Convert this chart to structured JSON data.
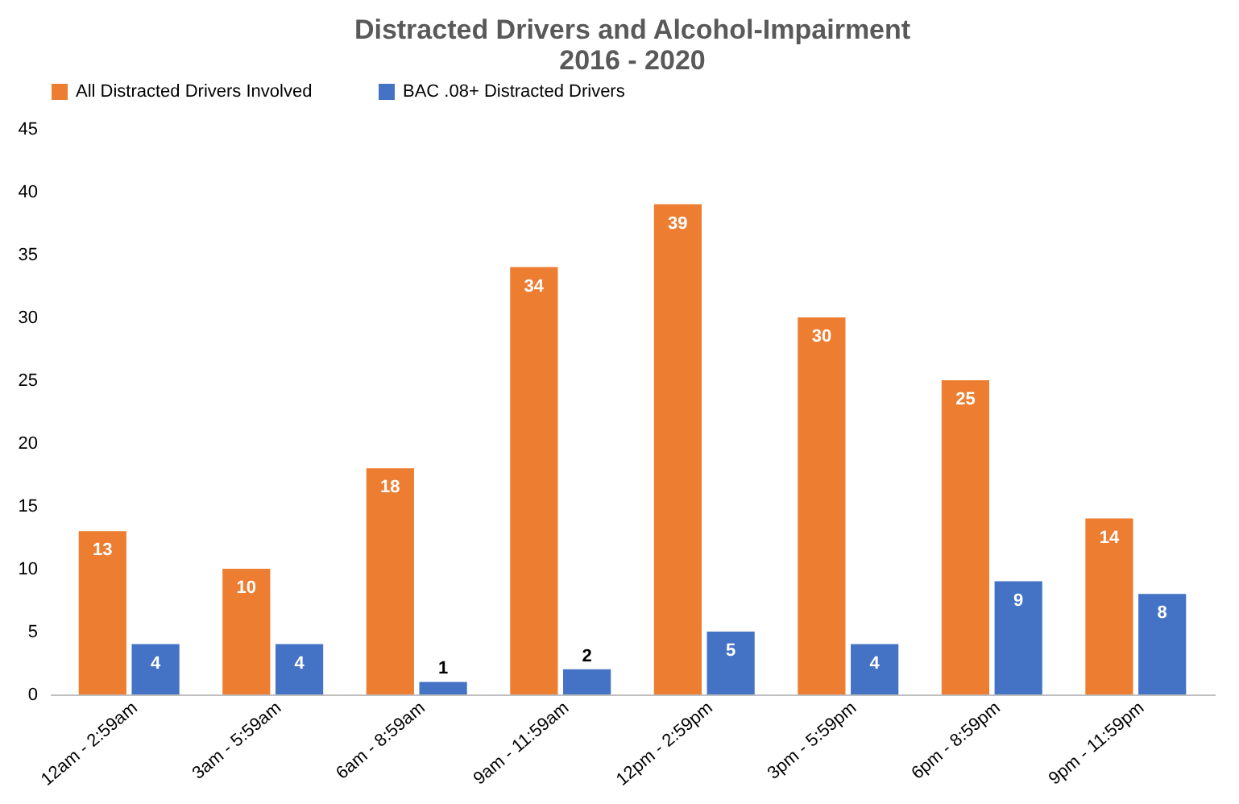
{
  "chart_data": {
    "type": "bar",
    "title": "Distracted Drivers and Alcohol-Impairment\n2016 - 2020",
    "categories": [
      "12am - 2:59am",
      "3am - 5:59am",
      "6am - 8:59am",
      "9am - 11:59am",
      "12pm - 2:59pm",
      "3pm - 5:59pm",
      "6pm - 8:59pm",
      "9pm - 11:59pm"
    ],
    "series": [
      {
        "name": "All Distracted Drivers Involved",
        "color": "#ed7d31",
        "values": [
          13,
          10,
          18,
          34,
          39,
          30,
          25,
          14
        ]
      },
      {
        "name": "BAC .08+ Distracted Drivers",
        "color": "#4472c4",
        "values": [
          4,
          4,
          1,
          2,
          5,
          4,
          9,
          8
        ]
      }
    ],
    "ylim": [
      0,
      45
    ],
    "yticks": [
      0,
      5,
      10,
      15,
      20,
      25,
      30,
      35,
      40,
      45
    ],
    "grid": false,
    "legend": "top",
    "data_labels": true
  }
}
